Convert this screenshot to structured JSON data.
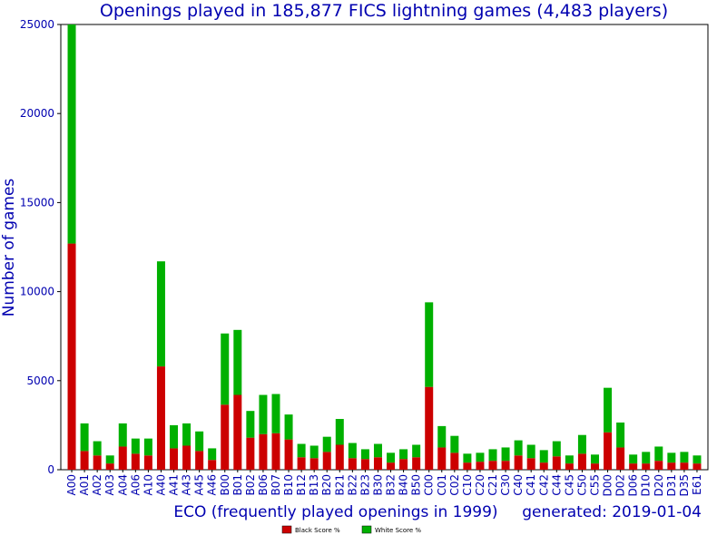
{
  "chart_data": {
    "type": "bar",
    "stacked": true,
    "title": "Openings played in 185,877 FICS lightning games (4,483 players)",
    "xlabel": "ECO (frequently played openings in 1999)",
    "ylabel": "Number of games",
    "generated": "generated: 2019-01-04",
    "ylim": [
      0,
      25000
    ],
    "yticks": [
      "0",
      "5000",
      "10000",
      "15000",
      "20000",
      "25000"
    ],
    "categories": [
      "A00",
      "A01",
      "A02",
      "A03",
      "A04",
      "A06",
      "A10",
      "A40",
      "A41",
      "A43",
      "A45",
      "A46",
      "B00",
      "B01",
      "B02",
      "B06",
      "B07",
      "B10",
      "B12",
      "B13",
      "B20",
      "B21",
      "B22",
      "B23",
      "B30",
      "B32",
      "B40",
      "B50",
      "C00",
      "C01",
      "C02",
      "C10",
      "C20",
      "C21",
      "C30",
      "C40",
      "C41",
      "C42",
      "C44",
      "C45",
      "C50",
      "C55",
      "D00",
      "D02",
      "D06",
      "D10",
      "D20",
      "D31",
      "D35",
      "E61"
    ],
    "series": [
      {
        "name": "Black Score %",
        "color": "#cc0000",
        "values": [
          12700,
          1050,
          800,
          350,
          1300,
          900,
          800,
          5800,
          1200,
          1350,
          1050,
          550,
          3650,
          4200,
          1800,
          2000,
          2050,
          1700,
          700,
          650,
          1000,
          1400,
          650,
          600,
          700,
          400,
          600,
          700,
          4650,
          1250,
          950,
          400,
          450,
          500,
          500,
          800,
          650,
          400,
          750,
          350,
          900,
          350,
          2100,
          1250,
          350,
          350,
          500,
          400,
          400,
          350
        ]
      },
      {
        "name": "White Score %",
        "color": "#00b000",
        "values": [
          12300,
          1550,
          800,
          450,
          1300,
          850,
          950,
          5900,
          1300,
          1250,
          1100,
          650,
          4000,
          3650,
          1500,
          2200,
          2200,
          1400,
          750,
          700,
          850,
          1450,
          850,
          550,
          750,
          550,
          550,
          700,
          4750,
          1200,
          950,
          500,
          500,
          650,
          750,
          850,
          750,
          700,
          850,
          450,
          1050,
          500,
          2500,
          1400,
          500,
          650,
          800,
          550,
          600,
          450
        ]
      }
    ],
    "legend_position": "bottom-center",
    "grid": false
  }
}
